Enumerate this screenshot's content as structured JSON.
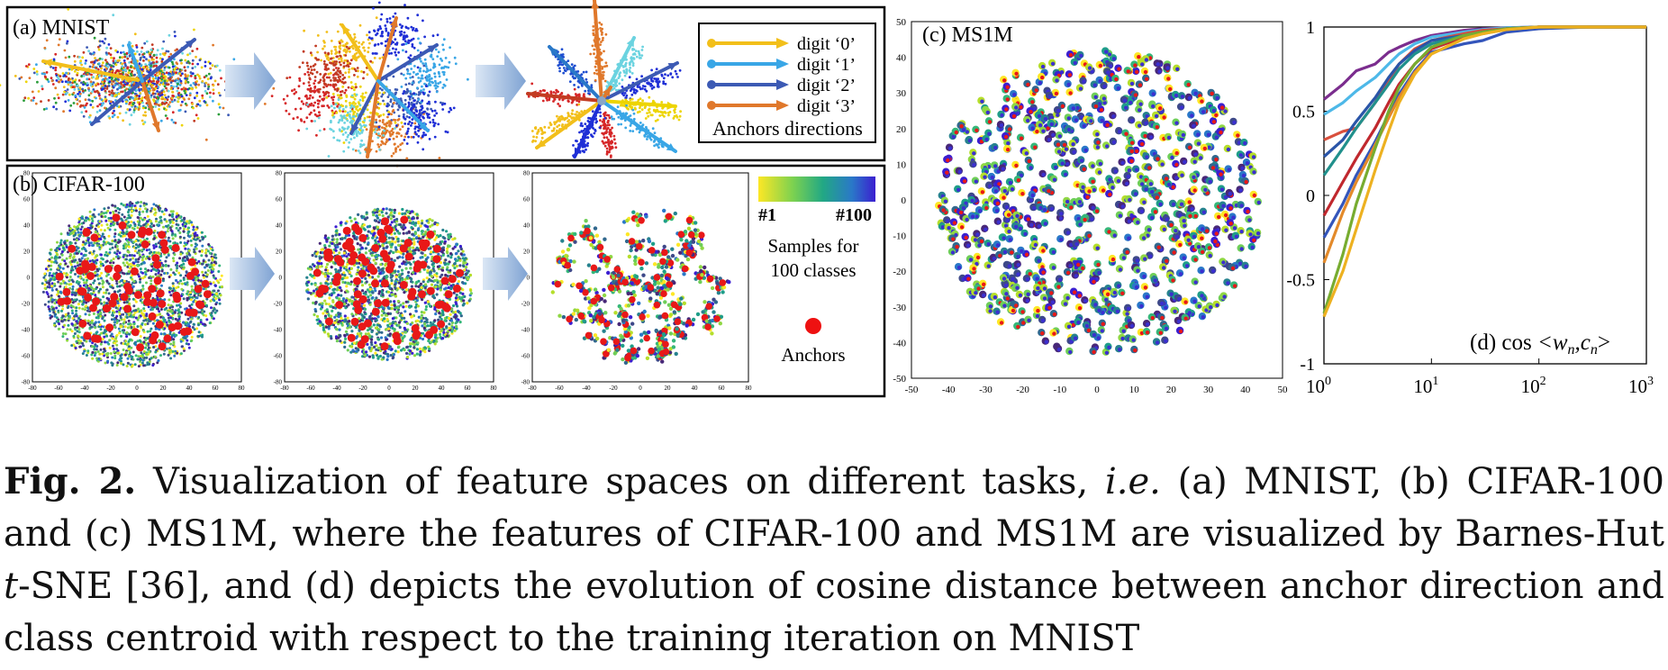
{
  "panels": {
    "a": {
      "label": "(a) MNIST",
      "legend": [
        {
          "text": "digit ‘0’",
          "color": "#f2bf1a"
        },
        {
          "text": "digit ‘1’",
          "color": "#39a6e6"
        },
        {
          "text": "digit ‘2’",
          "color": "#3c5ab4"
        },
        {
          "text": "digit ‘3’",
          "color": "#e0782b"
        }
      ],
      "legend_title": "Anchors directions"
    },
    "b": {
      "label": "(b) CIFAR-100",
      "x_ticks": [
        "-80",
        "-60",
        "-40",
        "-20",
        "0",
        "20",
        "40",
        "60",
        "80"
      ],
      "y_ticks": [
        "80",
        "60",
        "40",
        "20",
        "0",
        "-20",
        "-40",
        "-60",
        "-80"
      ],
      "colorbar_min": "#1",
      "colorbar_max": "#100",
      "samples_text_1": "Samples for",
      "samples_text_2": "100 classes",
      "anchors_text": "Anchors"
    },
    "c": {
      "label": "(c) MS1M",
      "x_ticks": [
        "-50",
        "-40",
        "-30",
        "-20",
        "-10",
        "0",
        "10",
        "20",
        "30",
        "40",
        "50"
      ],
      "y_ticks": [
        "50",
        "40",
        "30",
        "20",
        "10",
        "0",
        "-10",
        "-20",
        "-30",
        "-40",
        "-50"
      ]
    },
    "d": {
      "label_prefix": "(d) cos",
      "label_math": "<w",
      "label_sub_n1": "n",
      "label_comma": ",c",
      "label_sub_n2": "n",
      "label_close": ">",
      "y_ticks": [
        "1",
        "0.5",
        "0",
        "-0.5",
        "-1"
      ],
      "x_ticks_base": [
        "10",
        "10",
        "10",
        "10"
      ],
      "x_ticks_exp": [
        "0",
        "1",
        "2",
        "3"
      ]
    }
  },
  "caption": {
    "fig_label": "Fig. 2.",
    "part1": " Visualization of feature spaces on different tasks, ",
    "ie": "i.e.",
    "part2": " (a) MNIST, (b) CIFAR-100 and (c) MS1M, where the features of CIFAR-100 and MS1M are visualized by Barnes-Hut ",
    "t": "t",
    "part3": "-SNE [36], and (d) depicts the evolution of cosine distance between anchor direction and class centroid with respect to the training iteration on MNIST"
  },
  "chart_data": {
    "type": "line",
    "title": "(d) cos<wn,cn>",
    "xlabel": "",
    "ylabel": "",
    "x_scale": "log",
    "xlim": [
      1,
      1000
    ],
    "ylim": [
      -1,
      1
    ],
    "grid": false,
    "x": [
      1,
      1.5,
      2,
      3,
      4,
      5,
      7,
      10,
      20,
      30,
      50,
      100,
      300,
      1000
    ],
    "series": [
      {
        "color": "#7b2d8e",
        "values": [
          0.57,
          0.66,
          0.74,
          0.78,
          0.85,
          0.88,
          0.92,
          0.95,
          0.98,
          0.99,
          0.995,
          1.0,
          1.0,
          1.0
        ]
      },
      {
        "color": "#4db8e8",
        "values": [
          0.48,
          0.55,
          0.62,
          0.7,
          0.78,
          0.84,
          0.9,
          0.94,
          0.97,
          0.985,
          0.995,
          1.0,
          1.0,
          1.0
        ]
      },
      {
        "color": "#d94f3d",
        "values": [
          0.33,
          0.38,
          0.4,
          0.55,
          0.68,
          0.78,
          0.87,
          0.92,
          0.96,
          0.98,
          0.99,
          1.0,
          1.0,
          1.0
        ]
      },
      {
        "color": "#2a55a8",
        "values": [
          0.23,
          0.33,
          0.44,
          0.58,
          0.7,
          0.78,
          0.86,
          0.92,
          0.95,
          0.97,
          0.99,
          1.0,
          1.0,
          1.0
        ]
      },
      {
        "color": "#21908c",
        "values": [
          0.12,
          0.28,
          0.4,
          0.55,
          0.66,
          0.75,
          0.84,
          0.9,
          0.95,
          0.97,
          0.99,
          1.0,
          1.0,
          1.0
        ]
      },
      {
        "color": "#c0282e",
        "values": [
          -0.12,
          0.08,
          0.22,
          0.4,
          0.55,
          0.66,
          0.78,
          0.87,
          0.94,
          0.97,
          0.99,
          1.0,
          1.0,
          1.0
        ]
      },
      {
        "color": "#3355bb",
        "values": [
          -0.25,
          -0.05,
          0.12,
          0.32,
          0.48,
          0.6,
          0.74,
          0.85,
          0.9,
          0.92,
          0.97,
          0.99,
          1.0,
          1.0
        ]
      },
      {
        "color": "#e38a2a",
        "values": [
          -0.4,
          -0.1,
          0.08,
          0.3,
          0.46,
          0.58,
          0.73,
          0.84,
          0.93,
          0.96,
          0.985,
          1.0,
          1.0,
          1.0
        ]
      },
      {
        "color": "#77ac30",
        "values": [
          -0.7,
          -0.35,
          -0.05,
          0.28,
          0.5,
          0.64,
          0.78,
          0.88,
          0.95,
          0.97,
          0.99,
          1.0,
          1.0,
          1.0
        ]
      },
      {
        "color": "#edb120",
        "values": [
          -0.72,
          -0.45,
          -0.2,
          0.15,
          0.38,
          0.55,
          0.72,
          0.84,
          0.93,
          0.96,
          0.985,
          1.0,
          1.0,
          1.0
        ]
      }
    ]
  }
}
